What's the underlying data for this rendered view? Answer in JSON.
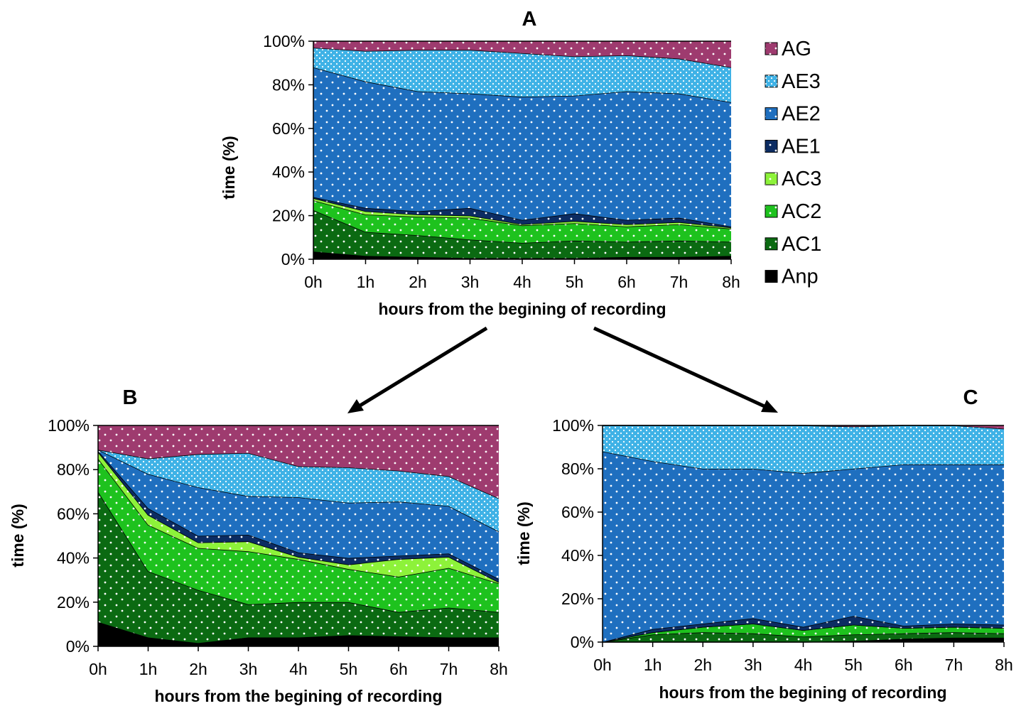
{
  "colors": {
    "AG": "#9e3b6f",
    "AE3": "#3fb2e6",
    "AE2": "#1f6fbf",
    "AE1": "#0c2c62",
    "AC3": "#8df23a",
    "AC2": "#1ec21e",
    "AC1": "#0b6a12",
    "Anp": "#000000"
  },
  "legend": [
    "AG",
    "AE3",
    "AE2",
    "AE1",
    "AC3",
    "AC2",
    "AC1",
    "Anp"
  ],
  "chart_data": [
    {
      "type": "area",
      "panel_label": "A",
      "xlabel": "hours from the begining of recording",
      "ylabel": "time (%)",
      "categories": [
        "0h",
        "1h",
        "2h",
        "3h",
        "4h",
        "5h",
        "6h",
        "7h",
        "8h"
      ],
      "y_ticks": [
        "0%",
        "20%",
        "40%",
        "60%",
        "80%",
        "100%"
      ],
      "ylim": [
        0,
        100
      ],
      "stacked": true,
      "series": [
        {
          "name": "Anp",
          "values": [
            3.5,
            1.5,
            1.0,
            0.5,
            0.5,
            0.5,
            1.0,
            1.0,
            1.5
          ]
        },
        {
          "name": "AC1",
          "values": [
            19.0,
            11.0,
            10.0,
            8.5,
            7.0,
            8.0,
            7.0,
            7.5,
            6.5
          ]
        },
        {
          "name": "AC2",
          "values": [
            4.5,
            8.0,
            8.5,
            10.0,
            8.0,
            8.0,
            7.0,
            7.5,
            6.0
          ]
        },
        {
          "name": "AC3",
          "values": [
            1.0,
            1.5,
            1.0,
            1.0,
            0.5,
            1.0,
            1.0,
            1.0,
            0.5
          ]
        },
        {
          "name": "AE1",
          "values": [
            0.5,
            1.5,
            1.5,
            3.5,
            2.0,
            3.5,
            2.0,
            2.0,
            0.5
          ]
        },
        {
          "name": "AE2",
          "values": [
            59.5,
            58.0,
            55.0,
            52.5,
            56.5,
            54.0,
            59.0,
            57.0,
            57.0
          ]
        },
        {
          "name": "AE3",
          "values": [
            9.0,
            14.0,
            19.0,
            20.0,
            20.0,
            18.0,
            16.5,
            16.0,
            16.0
          ]
        },
        {
          "name": "AG",
          "values": [
            3.0,
            4.5,
            4.0,
            4.0,
            5.5,
            7.0,
            6.5,
            8.0,
            12.0
          ]
        }
      ]
    },
    {
      "type": "area",
      "panel_label": "B",
      "xlabel": "hours from the begining of recording",
      "ylabel": "time (%)",
      "categories": [
        "0h",
        "1h",
        "2h",
        "3h",
        "4h",
        "5h",
        "6h",
        "7h",
        "8h"
      ],
      "y_ticks": [
        "0%",
        "20%",
        "40%",
        "60%",
        "80%",
        "100%"
      ],
      "ylim": [
        0,
        100
      ],
      "stacked": true,
      "series": [
        {
          "name": "Anp",
          "values": [
            11.0,
            4.0,
            1.5,
            4.0,
            4.0,
            5.0,
            4.5,
            4.0,
            4.0
          ]
        },
        {
          "name": "AC1",
          "values": [
            59.0,
            30.0,
            24.0,
            15.0,
            16.0,
            15.0,
            11.0,
            13.5,
            11.5
          ]
        },
        {
          "name": "AC2",
          "values": [
            15.0,
            21.0,
            19.0,
            24.0,
            19.5,
            15.0,
            16.0,
            18.0,
            13.0
          ]
        },
        {
          "name": "AC3",
          "values": [
            3.0,
            4.5,
            2.5,
            4.5,
            1.0,
            2.0,
            8.0,
            5.0,
            0.5
          ]
        },
        {
          "name": "AE1",
          "values": [
            0.5,
            3.0,
            3.0,
            3.0,
            2.0,
            3.0,
            1.5,
            1.5,
            1.5
          ]
        },
        {
          "name": "AE2",
          "values": [
            0.5,
            15.5,
            22.0,
            17.5,
            25.0,
            25.0,
            24.5,
            21.5,
            21.5
          ]
        },
        {
          "name": "AE3",
          "values": [
            0.0,
            7.0,
            15.0,
            19.5,
            14.0,
            16.0,
            14.0,
            13.5,
            15.0
          ]
        },
        {
          "name": "AG",
          "values": [
            11.0,
            15.0,
            13.0,
            12.5,
            18.5,
            19.0,
            20.5,
            23.0,
            33.0
          ]
        }
      ]
    },
    {
      "type": "area",
      "panel_label": "C",
      "xlabel": "hours from the begining of recording",
      "ylabel": "time (%)",
      "categories": [
        "0h",
        "1h",
        "2h",
        "3h",
        "4h",
        "5h",
        "6h",
        "7h",
        "8h"
      ],
      "y_ticks": [
        "0%",
        "20%",
        "40%",
        "60%",
        "80%",
        "100%"
      ],
      "ylim": [
        0,
        100
      ],
      "stacked": true,
      "series": [
        {
          "name": "Anp",
          "values": [
            0.0,
            0.0,
            0.0,
            0.0,
            0.0,
            0.5,
            1.5,
            2.0,
            2.0
          ]
        },
        {
          "name": "AC1",
          "values": [
            0.0,
            3.5,
            4.5,
            4.0,
            2.5,
            3.0,
            2.5,
            2.5,
            2.0
          ]
        },
        {
          "name": "AC2",
          "values": [
            0.0,
            1.0,
            2.5,
            4.5,
            3.0,
            4.5,
            2.5,
            2.5,
            2.5
          ]
        },
        {
          "name": "AC3",
          "values": [
            0.0,
            0.0,
            0.0,
            0.0,
            0.0,
            0.0,
            0.0,
            0.0,
            0.0
          ]
        },
        {
          "name": "AE1",
          "values": [
            0.0,
            1.5,
            1.5,
            2.5,
            1.5,
            4.0,
            1.0,
            1.5,
            1.5
          ]
        },
        {
          "name": "AE2",
          "values": [
            88.0,
            77.5,
            71.5,
            69.0,
            71.0,
            68.0,
            74.5,
            73.5,
            74.0
          ]
        },
        {
          "name": "AE3",
          "values": [
            12.0,
            16.5,
            20.0,
            20.0,
            22.0,
            19.5,
            18.0,
            18.0,
            16.5
          ]
        },
        {
          "name": "AG",
          "values": [
            0.0,
            0.0,
            0.0,
            0.0,
            0.0,
            0.5,
            0.0,
            0.0,
            1.5
          ]
        }
      ]
    }
  ]
}
